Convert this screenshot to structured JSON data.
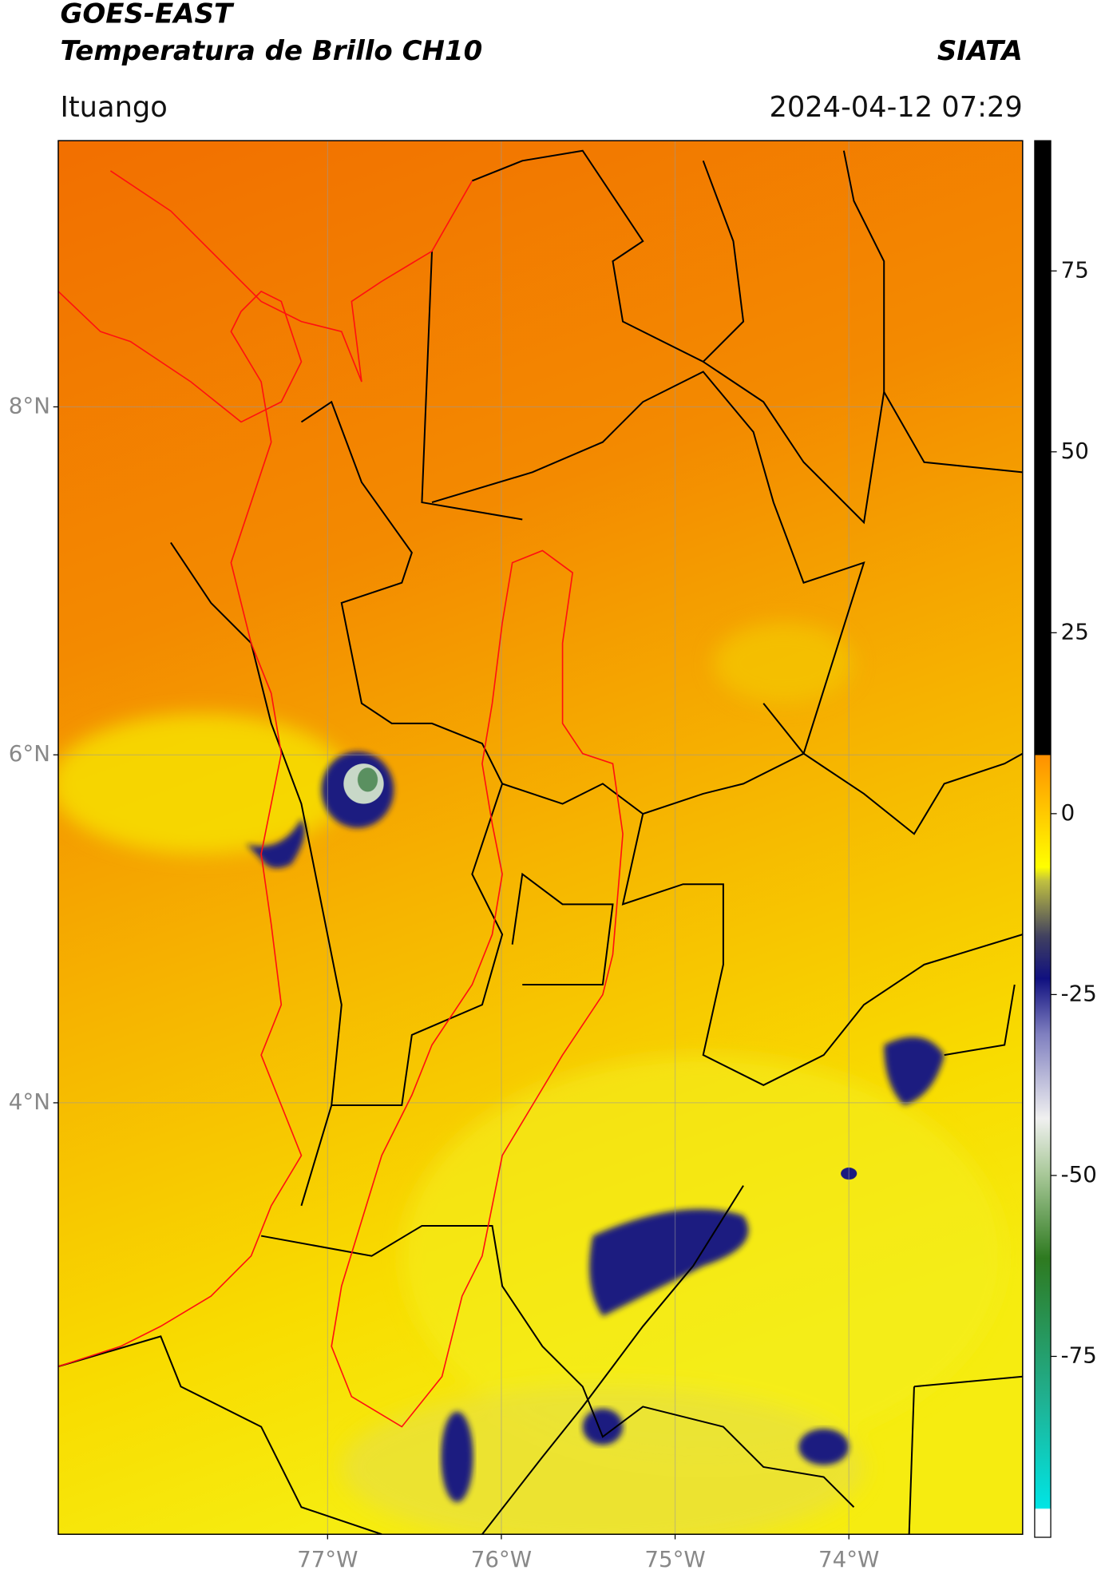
{
  "header": {
    "title": "GOES-EAST",
    "subtitle": "Temperatura de Brillo CH10",
    "org": "SIATA",
    "location": "Ituango",
    "datetime": "2024-04-12 07:29"
  },
  "map": {
    "lat_range": [
      1.52,
      9.53
    ],
    "lon_range": [
      -78.55,
      -73.0
    ],
    "lat_ticks": [
      {
        "value": 8,
        "label": "8°N"
      },
      {
        "value": 6,
        "label": "6°N"
      },
      {
        "value": 4,
        "label": "4°N"
      }
    ],
    "lon_ticks": [
      {
        "value": -77,
        "label": "77°W"
      },
      {
        "value": -76,
        "label": "76°W"
      },
      {
        "value": -75,
        "label": "75°W"
      },
      {
        "value": -74,
        "label": "74°W"
      }
    ],
    "grid": true
  },
  "colorbar": {
    "range": [
      -100,
      93
    ],
    "ticks": [
      75,
      50,
      25,
      0,
      -25,
      -50,
      -75
    ]
  }
}
